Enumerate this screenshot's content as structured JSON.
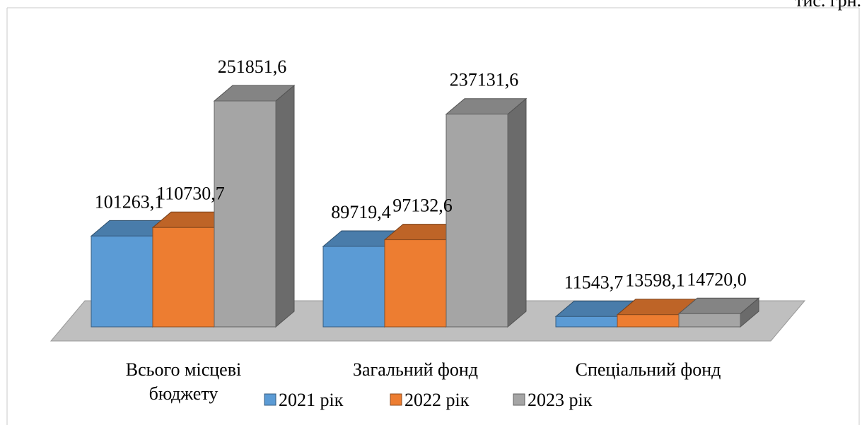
{
  "unit_label": "тис. грн.",
  "colors": {
    "s2021": "#5B9BD5",
    "s2022": "#ED7D31",
    "s2023": "#A5A5A5",
    "floor": "#BFBFBF"
  },
  "chart_data": {
    "type": "bar",
    "style": "3d-clustered",
    "categories": [
      "Всього місцеві бюджету",
      "Загальний фонд",
      "Спеціальний фонд"
    ],
    "category_lines": [
      [
        "Всього місцеві",
        "бюджету"
      ],
      [
        "Загальний фонд"
      ],
      [
        "Спеціальний фонд"
      ]
    ],
    "series": [
      {
        "name": "2021 рік",
        "values": [
          101263.1,
          89719.4,
          11543.7
        ],
        "labels": [
          "101263,1",
          "89719,4",
          "11543,7"
        ]
      },
      {
        "name": "2022 рік",
        "values": [
          110730.7,
          97132.6,
          13598.1
        ],
        "labels": [
          "110730,7",
          "97132,6",
          "13598,1"
        ]
      },
      {
        "name": "2023 рік",
        "values": [
          251851.6,
          237131.6,
          14720.0
        ],
        "labels": [
          "251851,6",
          "237131,6",
          "14720,0"
        ]
      }
    ],
    "legend_position": "bottom",
    "grid": false
  }
}
